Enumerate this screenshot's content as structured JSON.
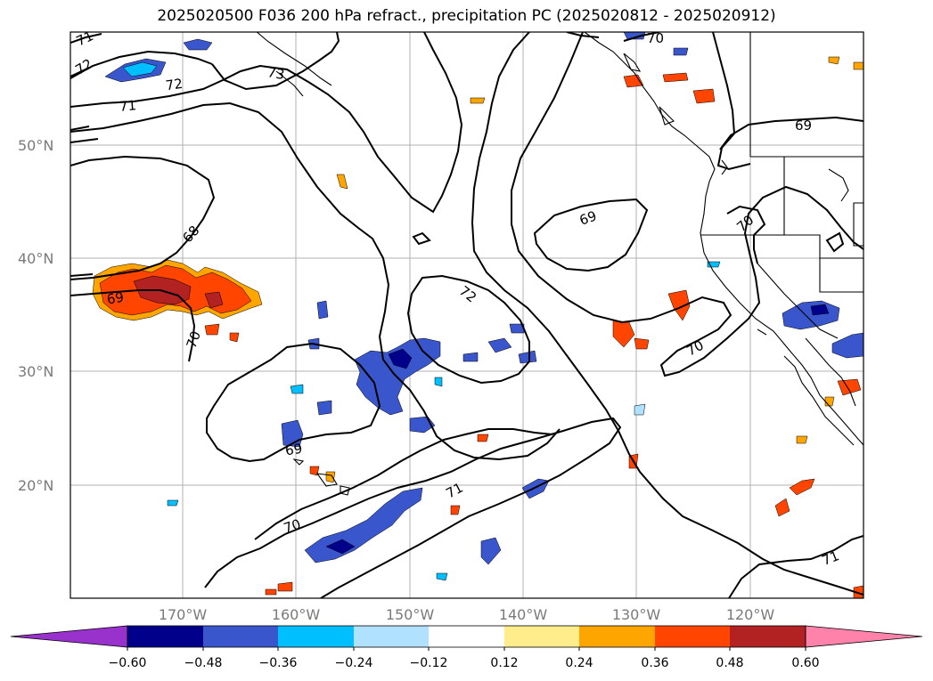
{
  "title": "2025020500 F036 200 hPa refract., precipitation PC (2025020812 - 2025020912)",
  "map": {
    "lat_ticks": [
      "50°N",
      "40°N",
      "30°N",
      "20°N"
    ],
    "lon_ticks": [
      "170°W",
      "160°W",
      "150°W",
      "140°W",
      "130°W",
      "120°W"
    ],
    "contour_labels": [
      "71",
      "72",
      "73",
      "72",
      "71",
      "70",
      "69",
      "68",
      "69",
      "70",
      "69",
      "72",
      "70",
      "69",
      "70",
      "71",
      "71",
      "70"
    ]
  },
  "colorbar": {
    "colors": [
      "#9932cc",
      "#00008b",
      "#3a56cc",
      "#00bfff",
      "#b0e2ff",
      "#ffffff",
      "#ffec8b",
      "#ffa500",
      "#ff4500",
      "#b22222",
      "#ff82ab"
    ],
    "labels": [
      "−0.60",
      "−0.48",
      "−0.36",
      "−0.24",
      "−0.12",
      "0.12",
      "0.24",
      "0.36",
      "0.48",
      "0.60"
    ]
  }
}
